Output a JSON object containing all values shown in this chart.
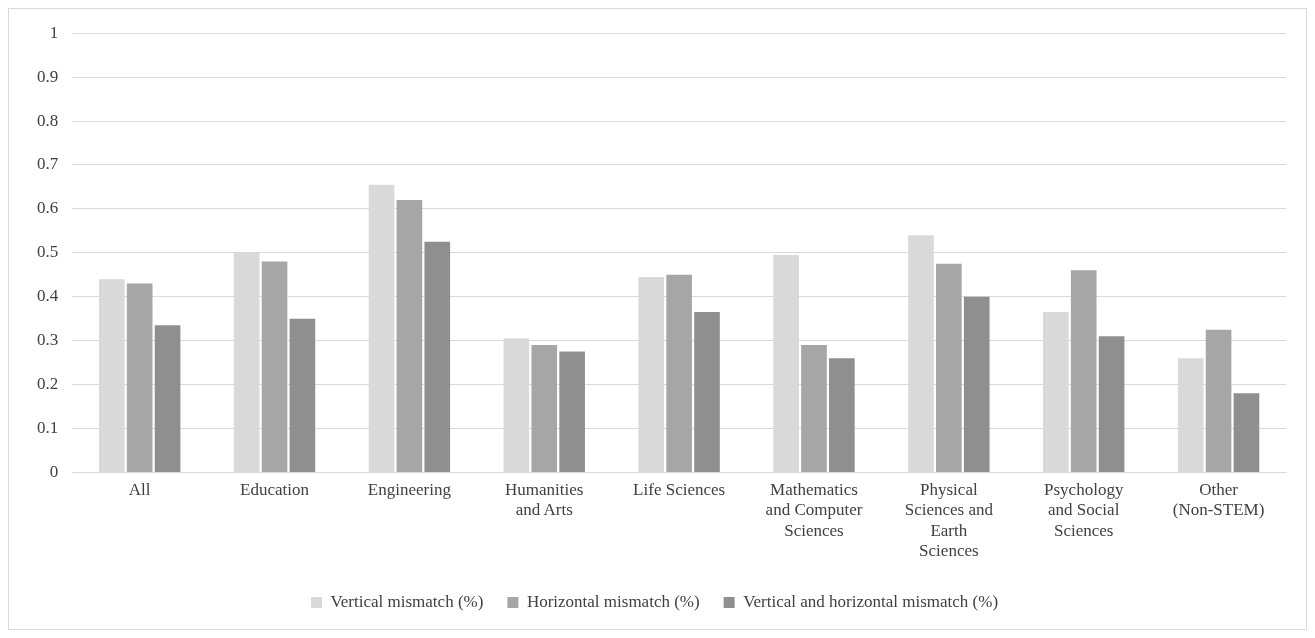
{
  "chart_data": {
    "type": "bar",
    "categories": [
      "All",
      "Education",
      "Engineering",
      "Humanities and Arts",
      "Life Sciences",
      "Mathematics and Computer Sciences",
      "Physical Sciences and Earth Sciences",
      "Psychology and Social Sciences",
      "Other (Non-STEM)"
    ],
    "series": [
      {
        "name": "Vertical mismatch (%)",
        "color": "#d9d9d9",
        "values": [
          0.44,
          0.5,
          0.655,
          0.305,
          0.445,
          0.495,
          0.54,
          0.365,
          0.26
        ]
      },
      {
        "name": "Horizontal mismatch (%)",
        "color": "#a6a6a6",
        "values": [
          0.43,
          0.48,
          0.62,
          0.29,
          0.45,
          0.29,
          0.475,
          0.46,
          0.325
        ]
      },
      {
        "name": "Vertical and horizontal mismatch (%)",
        "color": "#8f8f8f",
        "values": [
          0.335,
          0.35,
          0.525,
          0.275,
          0.365,
          0.26,
          0.4,
          0.31,
          0.18
        ]
      }
    ],
    "ylim": [
      0,
      1
    ],
    "yticks": [
      0,
      0.1,
      0.2,
      0.3,
      0.4,
      0.5,
      0.6,
      0.7,
      0.8,
      0.9,
      1
    ],
    "grid": "y",
    "legend": "bottom"
  }
}
